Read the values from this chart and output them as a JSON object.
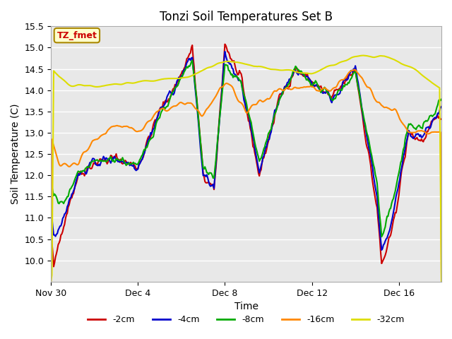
{
  "title": "Tonzi Soil Temperatures Set B",
  "xlabel": "Time",
  "ylabel": "Soil Temperature (C)",
  "ylim": [
    9.5,
    15.5
  ],
  "yticks": [
    10.0,
    10.5,
    11.0,
    11.5,
    12.0,
    12.5,
    13.0,
    13.5,
    14.0,
    14.5,
    15.0,
    15.5
  ],
  "xtick_labels": [
    "Nov 30",
    "Dec 4",
    "Dec 8",
    "Dec 12",
    "Dec 16"
  ],
  "xtick_positions": [
    0,
    96,
    192,
    288,
    384
  ],
  "total_points": 432,
  "series_colors": [
    "#cc0000",
    "#0000cc",
    "#00aa00",
    "#ff8800",
    "#dddd00"
  ],
  "series_labels": [
    "-2cm",
    "-4cm",
    "-8cm",
    "-16cm",
    "-32cm"
  ],
  "annotation_text": "TZ_fmet",
  "annotation_bg": "#ffffcc",
  "annotation_border": "#aa8800",
  "plot_bg": "#e8e8e8",
  "title_fontsize": 12,
  "axis_label_fontsize": 10,
  "tick_fontsize": 9,
  "legend_fontsize": 9,
  "line_width": 1.5
}
